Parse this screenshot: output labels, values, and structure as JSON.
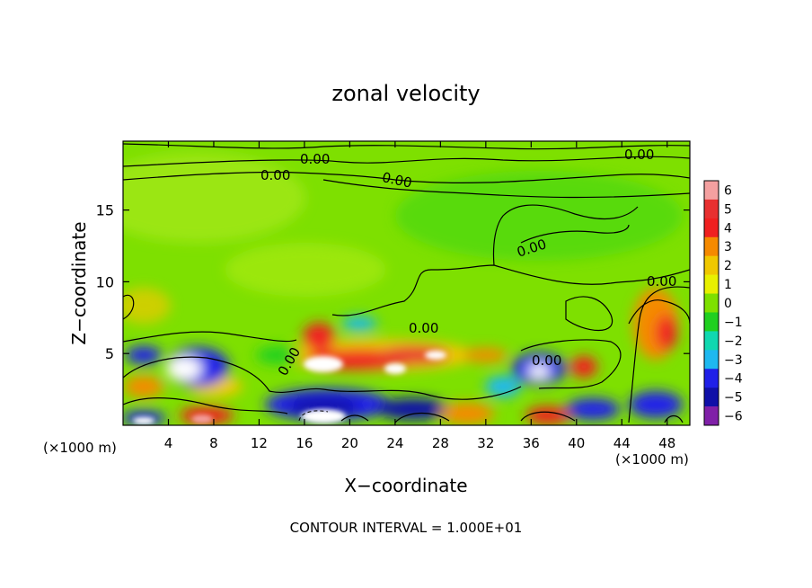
{
  "chart_data": {
    "type": "heatmap",
    "title": "zonal velocity",
    "xlabel": "X−coordinate",
    "ylabel": "Z−coordinate",
    "x_unit_left": "(×1000 m)",
    "x_unit_right": "(×1000 m)",
    "xlim": [
      0,
      50
    ],
    "ylim": [
      0,
      19.8
    ],
    "x_ticks": [
      4,
      8,
      12,
      16,
      20,
      24,
      28,
      32,
      36,
      40,
      44,
      48
    ],
    "y_ticks": [
      5,
      10,
      15
    ],
    "colorbar": {
      "levels": [
        6,
        5,
        4,
        3,
        2,
        1,
        0,
        -1,
        -2,
        -3,
        -4,
        -5,
        -6
      ],
      "labels": [
        "6",
        "5",
        "4",
        "3",
        "2",
        "1",
        "0",
        "−1",
        "−2",
        "−3",
        "−4",
        "−5",
        "−6"
      ],
      "colors": [
        "#f4a0a0",
        "#e83030",
        "#f02020",
        "#f58a00",
        "#f0c800",
        "#e8f000",
        "#7ee000",
        "#20d020",
        "#10d8b0",
        "#1eb8f0",
        "#2020e8",
        "#1010a8",
        "#8020a8"
      ]
    },
    "contour_labels": [
      "0.00",
      "0.00",
      "0.00",
      "0.00",
      "0.00",
      "0.00",
      "0.00",
      "0.00",
      "0.00"
    ],
    "footer": "CONTOUR INTERVAL = 1.000E+01"
  }
}
